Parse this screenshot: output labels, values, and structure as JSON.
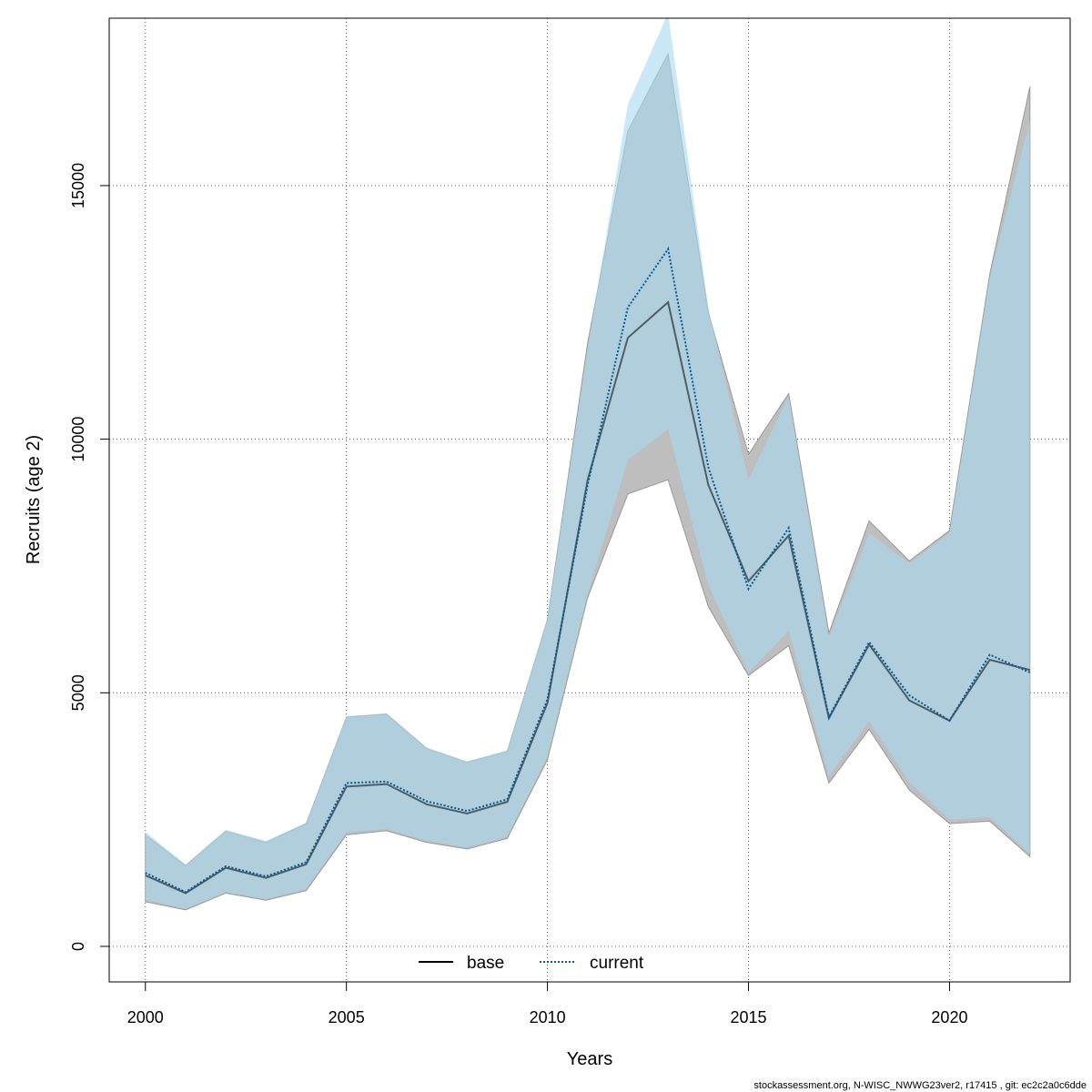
{
  "chart_data": {
    "type": "line",
    "xlabel": "Years",
    "ylabel": "Recruits (age 2)",
    "xlim": [
      1999.1,
      2023.0
    ],
    "ylim": [
      -700,
      18300
    ],
    "x_ticks": [
      2000,
      2005,
      2010,
      2015,
      2020
    ],
    "y_ticks": [
      0,
      5000,
      10000,
      15000
    ],
    "grid": true,
    "legend_position": "bottom-center",
    "x": [
      2000,
      2001,
      2002,
      2003,
      2004,
      2005,
      2006,
      2007,
      2008,
      2009,
      2010,
      2011,
      2012,
      2013,
      2014,
      2015,
      2016,
      2017,
      2018,
      2019,
      2020,
      2021,
      2022
    ],
    "series": [
      {
        "name": "base",
        "line_color": "#000000",
        "band_color": "#bebebe",
        "line_style": "solid",
        "values": [
          1400,
          1050,
          1550,
          1350,
          1620,
          3150,
          3200,
          2800,
          2620,
          2850,
          4800,
          9200,
          12000,
          12700,
          9100,
          7200,
          8100,
          4500,
          5950,
          4850,
          4450,
          5650,
          5450
        ],
        "lower": [
          880,
          720,
          1050,
          910,
          1100,
          2200,
          2280,
          2050,
          1920,
          2130,
          3680,
          6880,
          8920,
          9200,
          6700,
          5340,
          5930,
          3220,
          4280,
          3080,
          2420,
          2470,
          1770
        ],
        "upper": [
          2200,
          1590,
          2270,
          2050,
          2420,
          4520,
          4580,
          3900,
          3630,
          3840,
          6440,
          11900,
          16080,
          17600,
          12500,
          9700,
          10900,
          6180,
          8390,
          7600,
          8200,
          13250,
          16950
        ]
      },
      {
        "name": "current",
        "line_color": "#005a96",
        "band_color": "#a8d8f0",
        "line_style": "dotted",
        "values": [
          1450,
          1070,
          1580,
          1380,
          1660,
          3220,
          3250,
          2860,
          2670,
          2900,
          4870,
          9100,
          12600,
          13750,
          9450,
          7050,
          8250,
          4520,
          6000,
          4950,
          4450,
          5750,
          5400
        ],
        "lower": [
          920,
          740,
          1070,
          930,
          1130,
          2250,
          2310,
          2080,
          1950,
          2160,
          3740,
          6940,
          9590,
          10200,
          7120,
          5400,
          6220,
          3360,
          4440,
          3240,
          2500,
          2550,
          1830
        ],
        "upper": [
          2260,
          1620,
          2300,
          2080,
          2440,
          4540,
          4600,
          3920,
          3650,
          3870,
          6480,
          11800,
          16600,
          18400,
          12600,
          9200,
          10850,
          6100,
          8150,
          7550,
          8150,
          13200,
          16280
        ]
      }
    ]
  },
  "footer": {
    "credit": "stockassessment.org, N-WISC_NWWG23ver2, r17415 , git: ec2c2a0c6dde"
  }
}
